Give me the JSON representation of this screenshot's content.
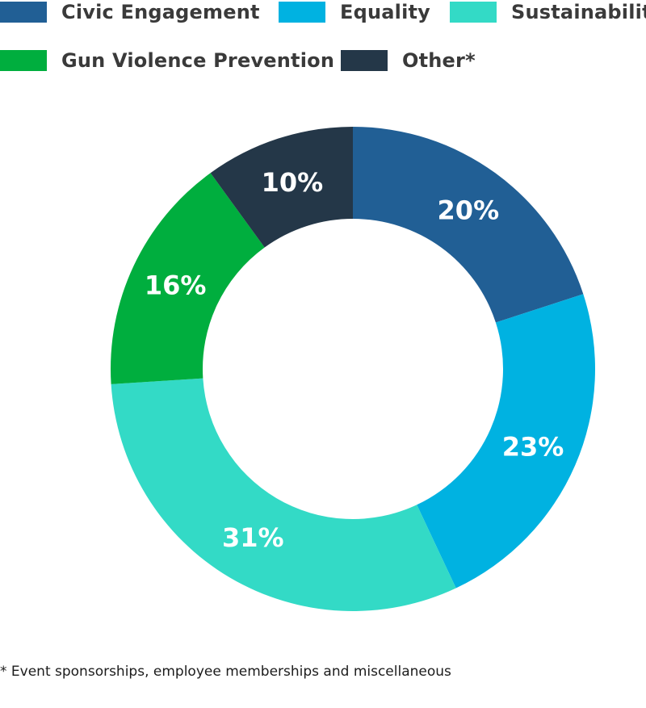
{
  "chart_data": {
    "type": "pie",
    "style": "donut",
    "legend_position": "top",
    "slices": [
      {
        "name": "Civic Engagement",
        "value": 20,
        "label": "20%",
        "color": "#215f95"
      },
      {
        "name": "Equality",
        "value": 23,
        "label": "23%",
        "color": "#00b2e1"
      },
      {
        "name": "Sustainability",
        "value": 31,
        "label": "31%",
        "color": "#33dac6"
      },
      {
        "name": "Gun Violence Prevention",
        "value": 16,
        "label": "16%",
        "color": "#00ae3e"
      },
      {
        "name": "Other*",
        "value": 10,
        "label": "10%",
        "color": "#243748"
      }
    ]
  },
  "footnote": "* Event sponsorships, employee memberships and miscellaneous"
}
